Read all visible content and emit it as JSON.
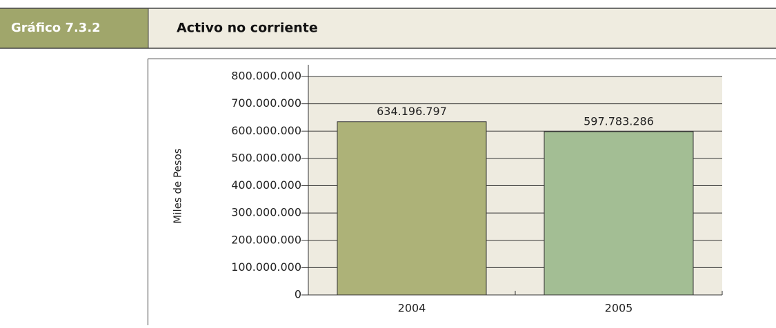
{
  "header": {
    "label": "Gráfico 7.3.2",
    "title": "Activo no corriente"
  },
  "chart_data": {
    "type": "bar",
    "y_axis_label": "Miles de Pesos",
    "categories": [
      "2004",
      "2005"
    ],
    "series": [
      {
        "name": "Activo no corriente",
        "values": [
          634196797,
          597783286
        ],
        "value_labels": [
          "634.196.797",
          "597.783.286"
        ],
        "colors": [
          "#adb278",
          "#a3be94"
        ]
      }
    ],
    "ylim": [
      0,
      800000000
    ],
    "yticks": [
      0,
      {
        "value": 100000000,
        "label": "100.000.000"
      },
      {
        "value": 200000000,
        "label": "200.000.000"
      },
      {
        "value": 300000000,
        "label": "300.000.000"
      },
      {
        "value": 400000000,
        "label": "400.000.000"
      },
      {
        "value": 500000000,
        "label": "500.000.000"
      },
      {
        "value": 600000000,
        "label": "600.000.000"
      },
      {
        "value": 700000000,
        "label": "700.000.000"
      },
      {
        "value": 800000000,
        "label": "800.000.000"
      }
    ],
    "grid": true
  }
}
